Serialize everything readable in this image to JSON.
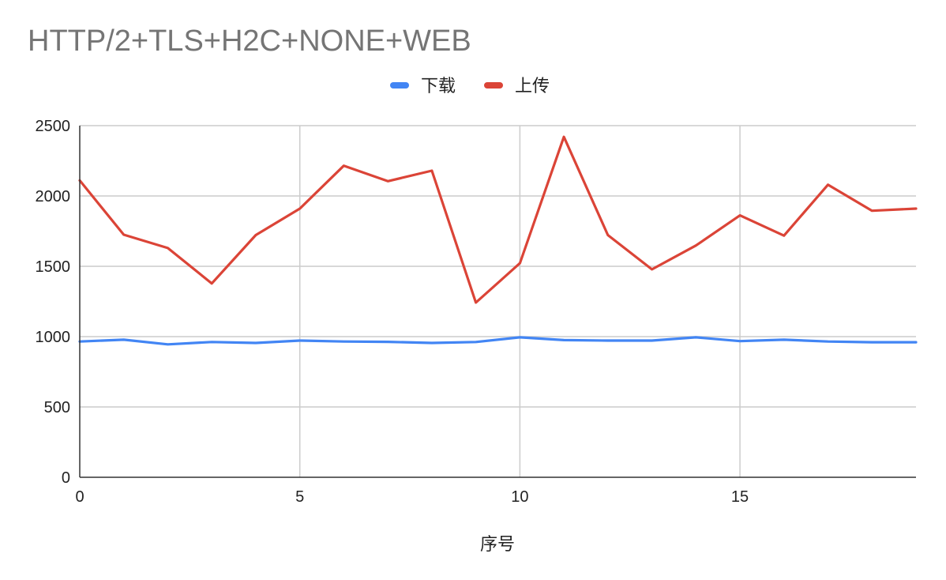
{
  "chart_data": {
    "type": "line",
    "title": "HTTP/2+TLS+H2C+NONE+WEB",
    "xlabel": "序号",
    "ylabel": "",
    "x": [
      0,
      1,
      2,
      3,
      4,
      5,
      6,
      7,
      8,
      9,
      10,
      11,
      12,
      13,
      14,
      15,
      16,
      17,
      18,
      19
    ],
    "xlim": [
      0,
      19
    ],
    "ylim": [
      0,
      2500
    ],
    "x_ticks": [
      0,
      5,
      10,
      15
    ],
    "y_ticks": [
      0,
      500,
      1000,
      1500,
      2000,
      2500
    ],
    "grid": true,
    "legend_position": "top-center",
    "series": [
      {
        "name": "下载",
        "color": "#4285f4",
        "values": [
          965,
          978,
          945,
          962,
          955,
          972,
          965,
          963,
          955,
          962,
          995,
          975,
          972,
          972,
          995,
          968,
          978,
          965,
          960,
          960
        ]
      },
      {
        "name": "上传",
        "color": "#db4437",
        "values": [
          2110,
          1725,
          1630,
          1378,
          1722,
          1910,
          2215,
          2105,
          2180,
          1242,
          1522,
          2420,
          1722,
          1478,
          1648,
          1862,
          1718,
          2080,
          1895,
          1910
        ]
      }
    ]
  }
}
